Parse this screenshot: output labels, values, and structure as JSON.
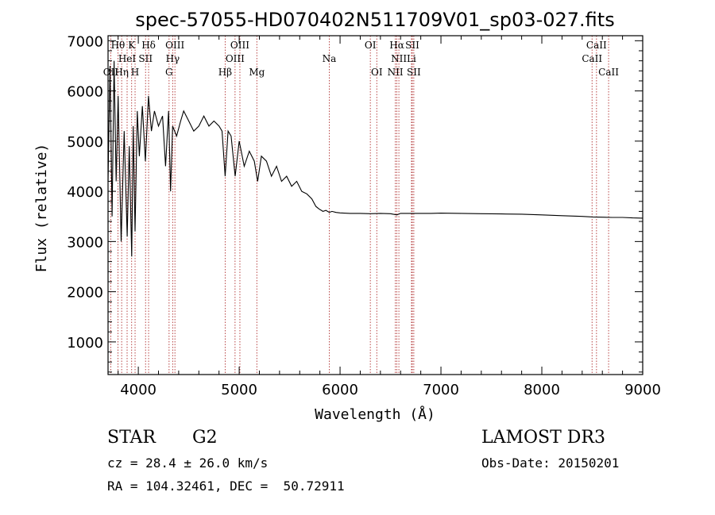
{
  "chart_data": {
    "type": "line",
    "title": "spec-57055-HD070402N511709V01_sp03-027.fits",
    "xlabel": "Wavelength (Å)",
    "ylabel": "Flux (relative)",
    "xlim": [
      3700,
      9000
    ],
    "ylim": [
      350,
      7100
    ],
    "x_ticks": [
      4000,
      5000,
      6000,
      7000,
      8000,
      9000
    ],
    "y_ticks": [
      1000,
      2000,
      3000,
      4000,
      5000,
      6000,
      7000
    ],
    "series": [
      {
        "name": "spectrum",
        "x": [
          3700,
          3720,
          3740,
          3760,
          3780,
          3800,
          3830,
          3860,
          3890,
          3910,
          3935,
          3950,
          3968,
          3990,
          4010,
          4040,
          4070,
          4101,
          4130,
          4160,
          4200,
          4240,
          4270,
          4300,
          4320,
          4340,
          4380,
          4420,
          4450,
          4500,
          4550,
          4600,
          4650,
          4700,
          4750,
          4800,
          4830,
          4861,
          4890,
          4920,
          4960,
          5000,
          5050,
          5100,
          5150,
          5183,
          5220,
          5270,
          5320,
          5370,
          5420,
          5470,
          5520,
          5570,
          5620,
          5670,
          5720,
          5760,
          5790,
          5830,
          5860,
          5893,
          5920,
          5960,
          6000,
          6100,
          6200,
          6300,
          6400,
          6500,
          6563,
          6600,
          6700,
          6800,
          6900,
          7000,
          7200,
          7400,
          7600,
          7800,
          8000,
          8200,
          8400,
          8500,
          8600,
          8700,
          8800,
          8900,
          9000
        ],
        "values": [
          4200,
          6500,
          3500,
          6600,
          4200,
          5900,
          3000,
          5200,
          3100,
          4900,
          2700,
          5300,
          3200,
          5600,
          4700,
          5700,
          4600,
          5900,
          5200,
          5600,
          5300,
          5500,
          4500,
          5600,
          4000,
          5300,
          5100,
          5400,
          5600,
          5400,
          5200,
          5300,
          5500,
          5300,
          5400,
          5300,
          5200,
          4300,
          5200,
          5100,
          4300,
          5000,
          4500,
          4800,
          4600,
          4200,
          4700,
          4600,
          4300,
          4500,
          4200,
          4300,
          4100,
          4200,
          4000,
          3950,
          3850,
          3700,
          3650,
          3600,
          3620,
          3580,
          3600,
          3580,
          3570,
          3560,
          3560,
          3555,
          3560,
          3555,
          3530,
          3560,
          3560,
          3560,
          3560,
          3565,
          3560,
          3555,
          3550,
          3545,
          3530,
          3515,
          3500,
          3490,
          3485,
          3480,
          3480,
          3470,
          3465
        ]
      }
    ],
    "spectral_lines": [
      {
        "name": "OII",
        "wl": 3727,
        "row": 2
      },
      {
        "name": "Hθ",
        "wl": 3798,
        "row": 0
      },
      {
        "name": "Hη",
        "wl": 3835,
        "row": 2
      },
      {
        "name": "HeI",
        "wl": 3889,
        "row": 1
      },
      {
        "name": "K",
        "wl": 3934,
        "row": 0
      },
      {
        "name": "H",
        "wl": 3968,
        "row": 2
      },
      {
        "name": "SII",
        "wl": 4072,
        "row": 1
      },
      {
        "name": "Hδ",
        "wl": 4102,
        "row": 0
      },
      {
        "name": "G",
        "wl": 4305,
        "row": 2
      },
      {
        "name": "Hγ",
        "wl": 4341,
        "row": 1
      },
      {
        "name": "OIII",
        "wl": 4363,
        "row": 0
      },
      {
        "name": "Hβ",
        "wl": 4861,
        "row": 2
      },
      {
        "name": "OIII",
        "wl": 4959,
        "row": 1
      },
      {
        "name": "OIII",
        "wl": 5007,
        "row": 0
      },
      {
        "name": "Mg",
        "wl": 5175,
        "row": 2
      },
      {
        "name": "Na",
        "wl": 5893,
        "row": 1
      },
      {
        "name": "OI",
        "wl": 6300,
        "row": 0
      },
      {
        "name": "OI",
        "wl": 6364,
        "row": 2
      },
      {
        "name": "NII",
        "wl": 6548,
        "row": 2
      },
      {
        "name": "Hα",
        "wl": 6563,
        "row": 0
      },
      {
        "name": "NII",
        "wl": 6583,
        "row": 1
      },
      {
        "name": "Li",
        "wl": 6708,
        "row": 1
      },
      {
        "name": "SII",
        "wl": 6716,
        "row": 0
      },
      {
        "name": "SII",
        "wl": 6731,
        "row": 2
      },
      {
        "name": "CaII",
        "wl": 8498,
        "row": 1
      },
      {
        "name": "CaII",
        "wl": 8542,
        "row": 0
      },
      {
        "name": "CaII",
        "wl": 8662,
        "row": 2
      }
    ]
  },
  "info": {
    "object_type": "STAR",
    "subclass": "G2",
    "survey": "LAMOST DR3",
    "cz": "cz = 28.4 ± 26.0 km/s",
    "obs_date": "Obs-Date: 20150201",
    "coords": "RA = 104.32461, DEC =  50.72911"
  },
  "colors": {
    "line_marker": "#b03030",
    "spectrum": "#000000"
  }
}
